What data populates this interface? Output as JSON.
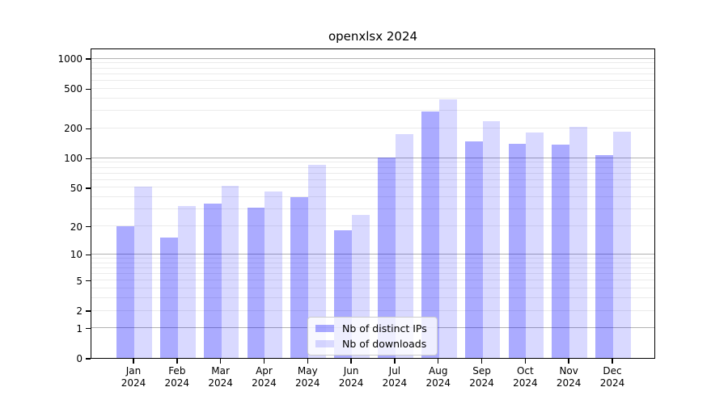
{
  "page": {
    "background": "#ffffff"
  },
  "chart_data": {
    "type": "bar",
    "title": "openxlsx 2024",
    "xlabel": "",
    "ylabel": "",
    "months": [
      "Jan",
      "Feb",
      "Mar",
      "Apr",
      "May",
      "Jun",
      "Jul",
      "Aug",
      "Sep",
      "Oct",
      "Nov",
      "Dec"
    ],
    "year_label": "2024",
    "series": [
      {
        "name": "Nb of distinct IPs",
        "color": "rgba(0,0,255,0.33)",
        "values": [
          20,
          15,
          34,
          31,
          40,
          18,
          100,
          290,
          145,
          139,
          135,
          106
        ]
      },
      {
        "name": "Nb of downloads",
        "color": "rgba(0,0,255,0.15)",
        "values": [
          51,
          32,
          52,
          45,
          85,
          26,
          172,
          385,
          232,
          181,
          203,
          184
        ]
      }
    ],
    "y_axis": {
      "scale": "log1p",
      "tick_labels": [
        0,
        1,
        2,
        5,
        10,
        20,
        50,
        100,
        200,
        500,
        1000
      ],
      "major_gridlines": [
        1,
        10,
        100,
        1000
      ],
      "minor_gridlines": [
        2,
        3,
        4,
        5,
        6,
        7,
        8,
        9,
        20,
        30,
        40,
        50,
        60,
        70,
        80,
        90,
        200,
        300,
        400,
        500,
        600,
        700,
        800,
        900
      ],
      "ylim": [
        0,
        1276
      ]
    },
    "grid": "horizontal",
    "legend_position": "lower center",
    "colors": {
      "major_grid": "rgba(0,0,0,0.30)",
      "minor_grid": "rgba(0,0,0,0.08)",
      "axis": "#000000",
      "background": "#ffffff"
    }
  }
}
